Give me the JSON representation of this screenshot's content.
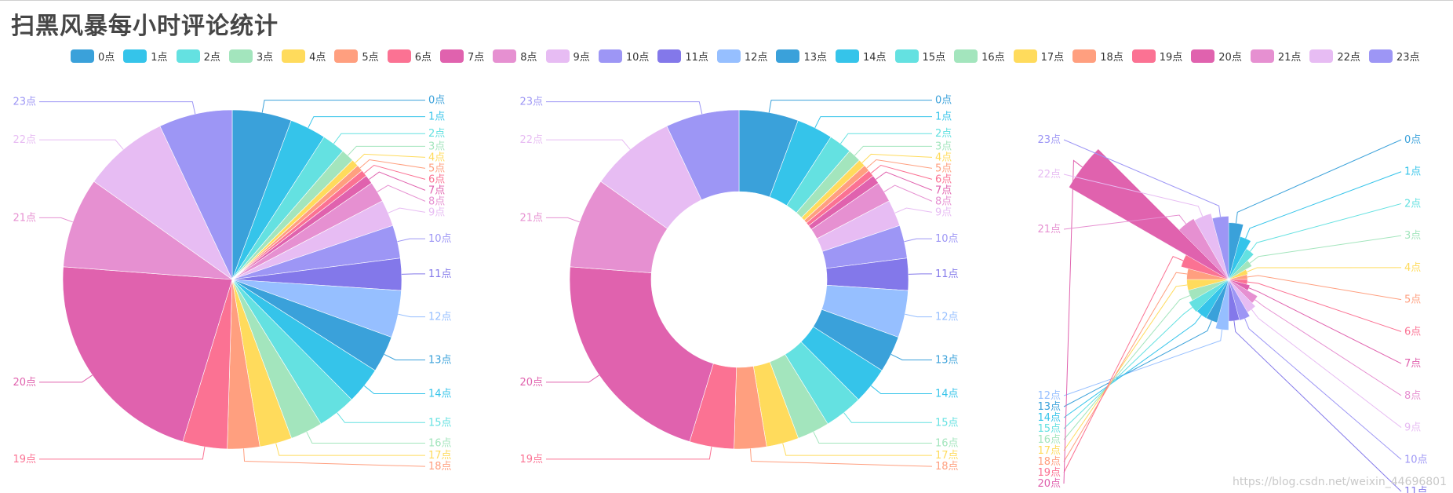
{
  "title": "扫黑风暴每小时评论统计",
  "watermark": "https://blog.csdn.net/weixin_44696801",
  "colors": [
    "#3aa1da",
    "#35c4ea",
    "#64e1e1",
    "#a3e5bd",
    "#ffdb5c",
    "#ff9f7f",
    "#fb7293",
    "#e062ae",
    "#e690d1",
    "#e7bcf3",
    "#9d96f5",
    "#8378ea",
    "#96bfff"
  ],
  "chart_data": [
    {
      "type": "pie",
      "style": "pie",
      "categories": [
        "0点",
        "1点",
        "2点",
        "3点",
        "4点",
        "5点",
        "6点",
        "7点",
        "8点",
        "9点",
        "10点",
        "11点",
        "12点",
        "13点",
        "14点",
        "15点",
        "16点",
        "17点",
        "18点",
        "19点",
        "20点",
        "21点",
        "22点",
        "23点"
      ],
      "values": [
        180,
        110,
        70,
        40,
        22,
        20,
        20,
        27,
        62,
        80,
        100,
        97,
        143,
        111,
        112,
        117,
        98,
        98,
        98,
        135,
        683,
        274,
        260,
        223
      ]
    },
    {
      "type": "pie",
      "style": "donut",
      "categories": [
        "0点",
        "1点",
        "2点",
        "3点",
        "4点",
        "5点",
        "6点",
        "7点",
        "8点",
        "9点",
        "10点",
        "11点",
        "12点",
        "13点",
        "14点",
        "15点",
        "16点",
        "17点",
        "18点",
        "19点",
        "20点",
        "21点",
        "22点",
        "23点"
      ],
      "values": [
        180,
        110,
        70,
        40,
        22,
        20,
        20,
        27,
        62,
        80,
        100,
        97,
        143,
        111,
        112,
        117,
        98,
        98,
        98,
        135,
        683,
        274,
        260,
        223
      ]
    },
    {
      "type": "pie",
      "style": "rose",
      "categories": [
        "0点",
        "1点",
        "2点",
        "3点",
        "4点",
        "5点",
        "6点",
        "7点",
        "8点",
        "9点",
        "10点",
        "11点",
        "12点",
        "13点",
        "14点",
        "15点",
        "16点",
        "17点",
        "18点",
        "19点",
        "20点",
        "21点",
        "22点",
        "23点"
      ],
      "values": [
        180,
        110,
        70,
        40,
        22,
        20,
        20,
        27,
        62,
        80,
        100,
        97,
        143,
        111,
        112,
        117,
        98,
        98,
        98,
        135,
        683,
        274,
        260,
        223
      ]
    }
  ]
}
